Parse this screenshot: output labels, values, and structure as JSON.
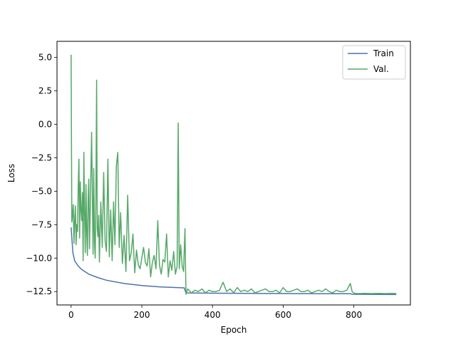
{
  "chart_data": {
    "type": "line",
    "title": "",
    "xlabel": "Epoch",
    "ylabel": "Loss",
    "xlim": [
      -40,
      960
    ],
    "ylim": [
      -13.5,
      6.2
    ],
    "xticks": [
      0,
      200,
      400,
      600,
      800
    ],
    "yticks": [
      -12.5,
      -10.0,
      -7.5,
      -5.0,
      -2.5,
      0.0,
      2.5,
      5.0
    ],
    "xtick_labels": [
      "0",
      "200",
      "400",
      "600",
      "800"
    ],
    "ytick_labels": [
      "−12.5",
      "−10.0",
      "−7.5",
      "−5.0",
      "−2.5",
      "0.0",
      "2.5",
      "5.0"
    ],
    "grid": false,
    "legend_position": "top-right",
    "series": [
      {
        "name": "Train",
        "color": "#4c72b0",
        "x": [
          0,
          5,
          10,
          20,
          30,
          50,
          75,
          100,
          150,
          200,
          250,
          300,
          320,
          325,
          400,
          500,
          600,
          700,
          790,
          795,
          920
        ],
        "y": [
          -7.7,
          -9.6,
          -10.2,
          -10.6,
          -10.85,
          -11.2,
          -11.45,
          -11.65,
          -11.9,
          -12.05,
          -12.15,
          -12.2,
          -12.22,
          -12.6,
          -12.62,
          -12.64,
          -12.65,
          -12.66,
          -12.66,
          -12.7,
          -12.72
        ]
      },
      {
        "name": "Val.",
        "color": "#55a868",
        "x": [
          0,
          2,
          4,
          6,
          8,
          10,
          12,
          14,
          16,
          18,
          20,
          22,
          24,
          26,
          28,
          30,
          32,
          34,
          36,
          38,
          40,
          42,
          44,
          46,
          48,
          50,
          52,
          54,
          56,
          58,
          60,
          62,
          64,
          66,
          68,
          70,
          72,
          74,
          76,
          78,
          80,
          84,
          88,
          92,
          96,
          100,
          104,
          108,
          112,
          116,
          120,
          124,
          128,
          132,
          136,
          140,
          145,
          150,
          155,
          160,
          165,
          170,
          175,
          180,
          185,
          190,
          195,
          200,
          205,
          210,
          215,
          220,
          225,
          230,
          235,
          240,
          245,
          250,
          255,
          260,
          265,
          270,
          275,
          280,
          285,
          290,
          295,
          300,
          303,
          306,
          310,
          314,
          318,
          322,
          325,
          330,
          340,
          350,
          360,
          370,
          380,
          390,
          400,
          410,
          420,
          430,
          440,
          450,
          460,
          470,
          480,
          490,
          500,
          510,
          520,
          530,
          540,
          550,
          560,
          570,
          580,
          590,
          600,
          610,
          620,
          630,
          640,
          650,
          660,
          670,
          680,
          690,
          700,
          710,
          720,
          730,
          740,
          750,
          760,
          770,
          780,
          790,
          795,
          800,
          810,
          830,
          850,
          870,
          890,
          910,
          920
        ],
        "y": [
          5.2,
          -7.3,
          -6.8,
          -6.0,
          -8.9,
          -7.2,
          -6.1,
          -9.0,
          -7.5,
          -8.0,
          -4.6,
          -2.6,
          -8.5,
          -4.3,
          -6.4,
          -7.2,
          -5.1,
          -10.2,
          -2.1,
          -6.6,
          -9.6,
          -4.5,
          -8.1,
          -9.8,
          -5.8,
          -4.1,
          -9.3,
          -6.6,
          -3.5,
          -0.6,
          -5.1,
          -9.7,
          -3.3,
          -8.8,
          -10.0,
          -5.6,
          3.3,
          -7.8,
          -8.4,
          -6.8,
          -10.3,
          -5.8,
          -9.2,
          -3.6,
          -8.7,
          -9.5,
          -2.6,
          -9.9,
          -6.4,
          -10.2,
          -5.8,
          -9.0,
          -3.1,
          -2.1,
          -9.2,
          -6.6,
          -10.4,
          -8.3,
          -11.0,
          -5.3,
          -10.2,
          -9.6,
          -8.2,
          -11.1,
          -9.4,
          -10.5,
          -10.8,
          -10.0,
          -9.2,
          -10.3,
          -10.6,
          -9.3,
          -11.4,
          -10.3,
          -9.8,
          -10.8,
          -7.2,
          -10.5,
          -11.2,
          -10.1,
          -10.3,
          -8.2,
          -11.4,
          -10.2,
          -10.9,
          -9.5,
          -11.2,
          -10.6,
          0.1,
          -10.8,
          -9.0,
          -10.6,
          -11.0,
          -7.8,
          -12.7,
          -12.3,
          -12.6,
          -12.4,
          -12.5,
          -12.3,
          -12.6,
          -12.4,
          -12.5,
          -12.5,
          -12.4,
          -11.8,
          -12.5,
          -12.3,
          -12.6,
          -12.2,
          -12.5,
          -12.4,
          -12.5,
          -12.3,
          -12.6,
          -12.5,
          -12.4,
          -12.3,
          -12.5,
          -12.5,
          -12.4,
          -12.6,
          -12.2,
          -12.5,
          -12.5,
          -12.4,
          -12.3,
          -12.5,
          -12.5,
          -12.4,
          -12.6,
          -12.5,
          -12.4,
          -12.5,
          -12.3,
          -12.5,
          -12.6,
          -12.4,
          -12.5,
          -12.5,
          -12.4,
          -11.9,
          -12.5,
          -12.62,
          -12.65,
          -12.64,
          -12.65,
          -12.64,
          -12.65,
          -12.64,
          -12.65
        ]
      }
    ]
  }
}
